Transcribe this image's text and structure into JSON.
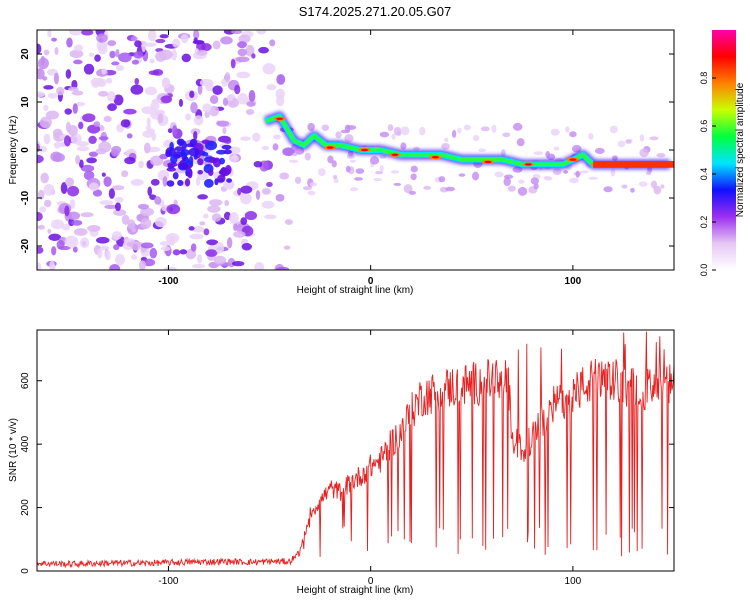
{
  "title": "S174.2025.271.20.05.G07",
  "chart_data": [
    {
      "type": "heatmap",
      "name": "spectrogram",
      "xlabel": "Height of straight line (km)",
      "ylabel": "Frequency (Hz)",
      "xlim": [
        -165,
        150
      ],
      "ylim": [
        -25,
        25
      ],
      "xticks": [
        -100,
        0,
        100
      ],
      "yticks": [
        20,
        10,
        0,
        -10,
        -20
      ],
      "colorbar": {
        "label": "Normalized spectral amplitude",
        "range": [
          0.0,
          1.0
        ],
        "ticks": [
          0.0,
          0.2,
          0.4,
          0.6,
          0.8
        ],
        "colors": [
          "#ffffff",
          "#e6c6f5",
          "#9b2ff0",
          "#1010ff",
          "#00e5ff",
          "#00ff40",
          "#c8ff00",
          "#ff8000",
          "#ff0000",
          "#ff00aa"
        ]
      },
      "ridge": {
        "x": [
          -52,
          -45,
          -38,
          -33,
          -28,
          -22,
          -15,
          -5,
          5,
          15,
          25,
          35,
          45,
          55,
          65,
          75,
          85,
          95,
          100,
          105,
          110,
          120,
          130,
          140,
          148
        ],
        "y": [
          6,
          7,
          2,
          1,
          3,
          1,
          1,
          0,
          0,
          -1,
          -1,
          -1,
          -2,
          -2,
          -2,
          -3,
          -3,
          -3,
          -2,
          -1,
          -3,
          -3,
          -3,
          -3,
          -3
        ]
      }
    },
    {
      "type": "line",
      "name": "snr",
      "xlabel": "Height of straight line (km)",
      "ylabel": "SNR (10 * v/v)",
      "xlim": [
        -165,
        150
      ],
      "ylim": [
        0,
        760
      ],
      "xticks": [
        -100,
        0,
        100
      ],
      "yticks": [
        0,
        200,
        400,
        600
      ],
      "color": "#e82020",
      "series": [
        {
          "name": "SNR",
          "x": [
            -165,
            -150,
            -130,
            -110,
            -90,
            -70,
            -60,
            -50,
            -40,
            -35,
            -30,
            -25,
            -20,
            -15,
            -10,
            -5,
            0,
            5,
            10,
            15,
            20,
            25,
            30,
            40,
            50,
            60,
            65,
            68,
            70,
            75,
            80,
            85,
            90,
            100,
            110,
            120,
            130,
            140,
            150
          ],
          "values": [
            25,
            22,
            25,
            25,
            28,
            30,
            28,
            30,
            30,
            60,
            180,
            220,
            260,
            250,
            280,
            300,
            330,
            350,
            400,
            440,
            500,
            550,
            560,
            580,
            590,
            600,
            590,
            600,
            420,
            380,
            420,
            470,
            520,
            560,
            600,
            600,
            580,
            570,
            590
          ]
        }
      ]
    }
  ]
}
